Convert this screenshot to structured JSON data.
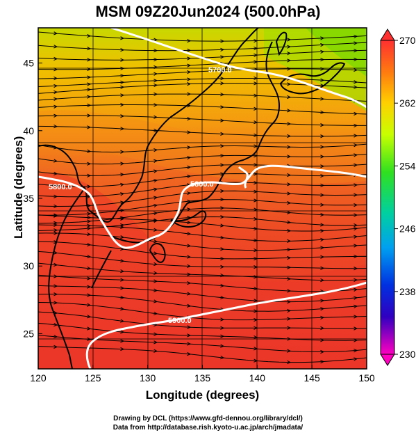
{
  "title": "MSM 09Z20Jun2024 (500.0hPa)",
  "axes": {
    "xlabel": "Longitude (degrees)",
    "ylabel": "Latitude  (degrees)",
    "x_ticks": [
      "120",
      "125",
      "130",
      "135",
      "140",
      "145",
      "150"
    ],
    "y_ticks": [
      "25",
      "30",
      "35",
      "40",
      "45"
    ],
    "x_range": [
      120,
      150
    ],
    "y_range": [
      22.4,
      47.6
    ]
  },
  "colorbar": {
    "tick_labels": [
      "270",
      "262",
      "254",
      "246",
      "238",
      "230"
    ],
    "range": [
      230,
      270
    ]
  },
  "contour_labels": [
    "5700.0",
    "5800.0",
    "5800.0",
    "5900.0"
  ],
  "credits": {
    "line1": "Drawing by DCL (https://www.gfd-dennou.org/library/dcl/)",
    "line2": "Data from http://database.rish.kyoto-u.ac.jp/arch/jmadata/"
  }
}
